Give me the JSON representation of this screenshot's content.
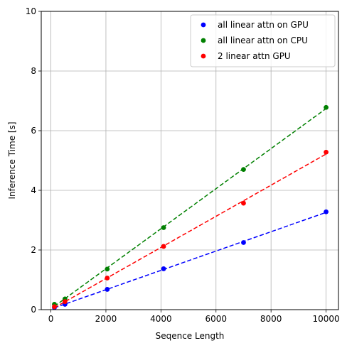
{
  "chart_data": {
    "type": "scatter",
    "title": "",
    "xlabel": "Seqence Length",
    "ylabel": "Inference Time [s]",
    "xlim": [
      -350,
      10450
    ],
    "ylim": [
      0,
      10
    ],
    "xticks": [
      0,
      2000,
      4000,
      6000,
      8000,
      10000
    ],
    "yticks": [
      0,
      2,
      4,
      6,
      8,
      10
    ],
    "grid": true,
    "legend_position": "top-right",
    "series": [
      {
        "name": "all linear attn on GPU",
        "color": "#0000ff",
        "x": [
          128,
          512,
          2048,
          4096,
          7000,
          10000
        ],
        "y": [
          0.07,
          0.18,
          0.68,
          1.37,
          2.25,
          3.28
        ]
      },
      {
        "name": "all linear attn on CPU",
        "color": "#008000",
        "x": [
          128,
          512,
          2048,
          4096,
          7000,
          10000
        ],
        "y": [
          0.18,
          0.36,
          1.36,
          2.75,
          4.7,
          6.78
        ]
      },
      {
        "name": "2 linear attn GPU",
        "color": "#ff0000",
        "x": [
          128,
          512,
          2048,
          4096,
          7000,
          10000
        ],
        "y": [
          0.1,
          0.27,
          1.06,
          2.12,
          3.57,
          5.28
        ]
      }
    ]
  }
}
